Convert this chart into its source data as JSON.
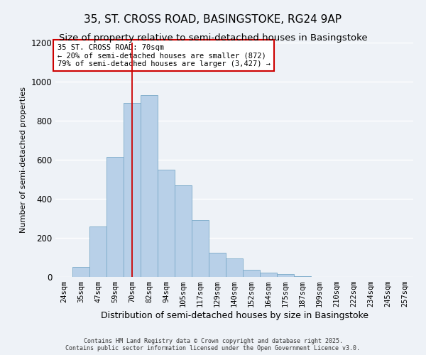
{
  "title": "35, ST. CROSS ROAD, BASINGSTOKE, RG24 9AP",
  "subtitle": "Size of property relative to semi-detached houses in Basingstoke",
  "xlabel": "Distribution of semi-detached houses by size in Basingstoke",
  "ylabel": "Number of semi-detached properties",
  "bar_labels": [
    "24sqm",
    "35sqm",
    "47sqm",
    "59sqm",
    "70sqm",
    "82sqm",
    "94sqm",
    "105sqm",
    "117sqm",
    "129sqm",
    "140sqm",
    "152sqm",
    "164sqm",
    "175sqm",
    "187sqm",
    "199sqm",
    "210sqm",
    "222sqm",
    "234sqm",
    "245sqm",
    "257sqm"
  ],
  "bar_values": [
    0,
    50,
    260,
    615,
    890,
    930,
    550,
    470,
    290,
    125,
    95,
    38,
    22,
    13,
    5,
    1,
    0,
    0,
    0,
    0,
    0
  ],
  "bar_color": "#b8d0e8",
  "bar_edge_color": "#7aaac8",
  "highlight_index": 4,
  "ylim": [
    0,
    1200
  ],
  "yticks": [
    0,
    200,
    400,
    600,
    800,
    1000,
    1200
  ],
  "annotation_title": "35 ST. CROSS ROAD: 70sqm",
  "annotation_line1": "← 20% of semi-detached houses are smaller (872)",
  "annotation_line2": "79% of semi-detached houses are larger (3,427) →",
  "annotation_box_color": "#ffffff",
  "annotation_box_edge_color": "#cc0000",
  "footer1": "Contains HM Land Registry data © Crown copyright and database right 2025.",
  "footer2": "Contains public sector information licensed under the Open Government Licence v3.0.",
  "bg_color": "#eef2f7",
  "grid_color": "#ffffff",
  "title_fontsize": 11,
  "subtitle_fontsize": 9.5,
  "tick_fontsize": 7.5,
  "ylabel_fontsize": 8,
  "xlabel_fontsize": 9
}
